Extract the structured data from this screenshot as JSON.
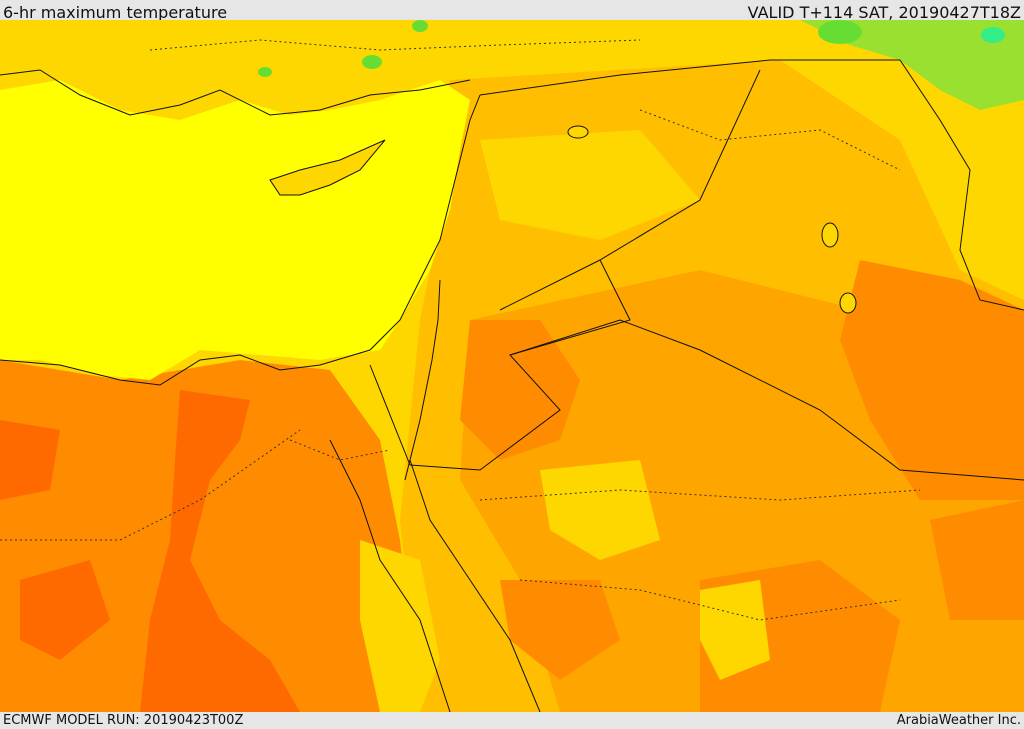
{
  "header": {
    "title": "6-hr maximum temperature",
    "valid": "VALID T+114 SAT, 20190427T18Z"
  },
  "footer": {
    "model_run": "ECMWF MODEL RUN: 20190423T00Z",
    "credit": "ArabiaWeather Inc."
  },
  "colors": {
    "sea_yellow": "#ffff00",
    "warm_yellow": "#ffd700",
    "light_orange": "#ffbf00",
    "orange": "#ffa500",
    "dark_orange": "#ff8c00",
    "red_orange": "#ff6a00",
    "green": "#66dd33",
    "teal": "#33ee88",
    "border": "#111111"
  }
}
